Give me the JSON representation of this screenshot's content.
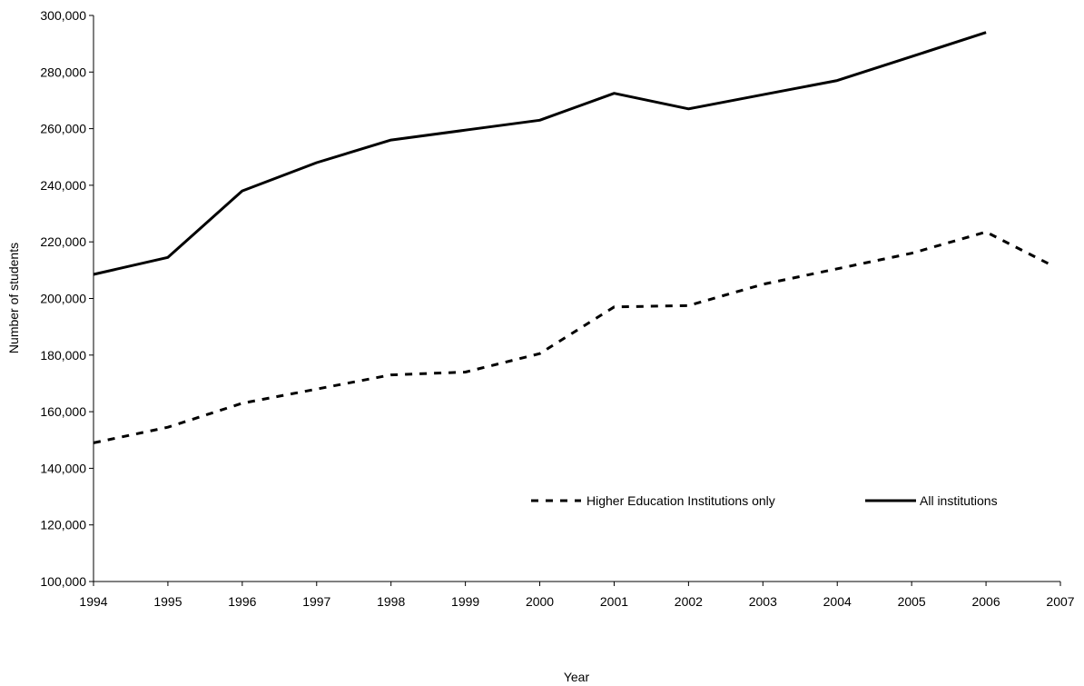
{
  "chart_data": {
    "type": "line",
    "xlabel": "Year",
    "ylabel": "Number of students",
    "xlim": [
      1994,
      2007
    ],
    "ylim": [
      100000,
      300000
    ],
    "x_ticks": [
      "1994",
      "1995",
      "1996",
      "1997",
      "1998",
      "1999",
      "2000",
      "2001",
      "2002",
      "2003",
      "2004",
      "2005",
      "2006",
      "2007"
    ],
    "y_ticks": [
      "100,000",
      "120,000",
      "140,000",
      "160,000",
      "180,000",
      "200,000",
      "220,000",
      "240,000",
      "260,000",
      "280,000",
      "300,000"
    ],
    "grid": false,
    "legend_position": "lower-right",
    "series": [
      {
        "name": "Higher Education Institutions only",
        "style": "dashed",
        "color": "#000000",
        "points": [
          [
            1994,
            149000
          ],
          [
            1995,
            154500
          ],
          [
            1996,
            163000
          ],
          [
            1997,
            168000
          ],
          [
            1998,
            173000
          ],
          [
            1999,
            174000
          ],
          [
            2000,
            180500
          ],
          [
            2001,
            197000
          ],
          [
            2002,
            197500
          ],
          [
            2003,
            205000
          ],
          [
            2004,
            210500
          ],
          [
            2005,
            216000
          ],
          [
            2006,
            223500
          ],
          [
            2006.9,
            211500
          ]
        ]
      },
      {
        "name": "All  institutions",
        "style": "solid",
        "color": "#000000",
        "points": [
          [
            1994,
            208500
          ],
          [
            1995,
            214500
          ],
          [
            1996,
            238000
          ],
          [
            1997,
            248000
          ],
          [
            1998,
            256000
          ],
          [
            1999,
            259500
          ],
          [
            2000,
            263000
          ],
          [
            2001,
            272500
          ],
          [
            2002,
            267000
          ],
          [
            2003,
            272000
          ],
          [
            2004,
            277000
          ],
          [
            2005,
            285500
          ],
          [
            2006,
            294000
          ]
        ]
      }
    ]
  }
}
